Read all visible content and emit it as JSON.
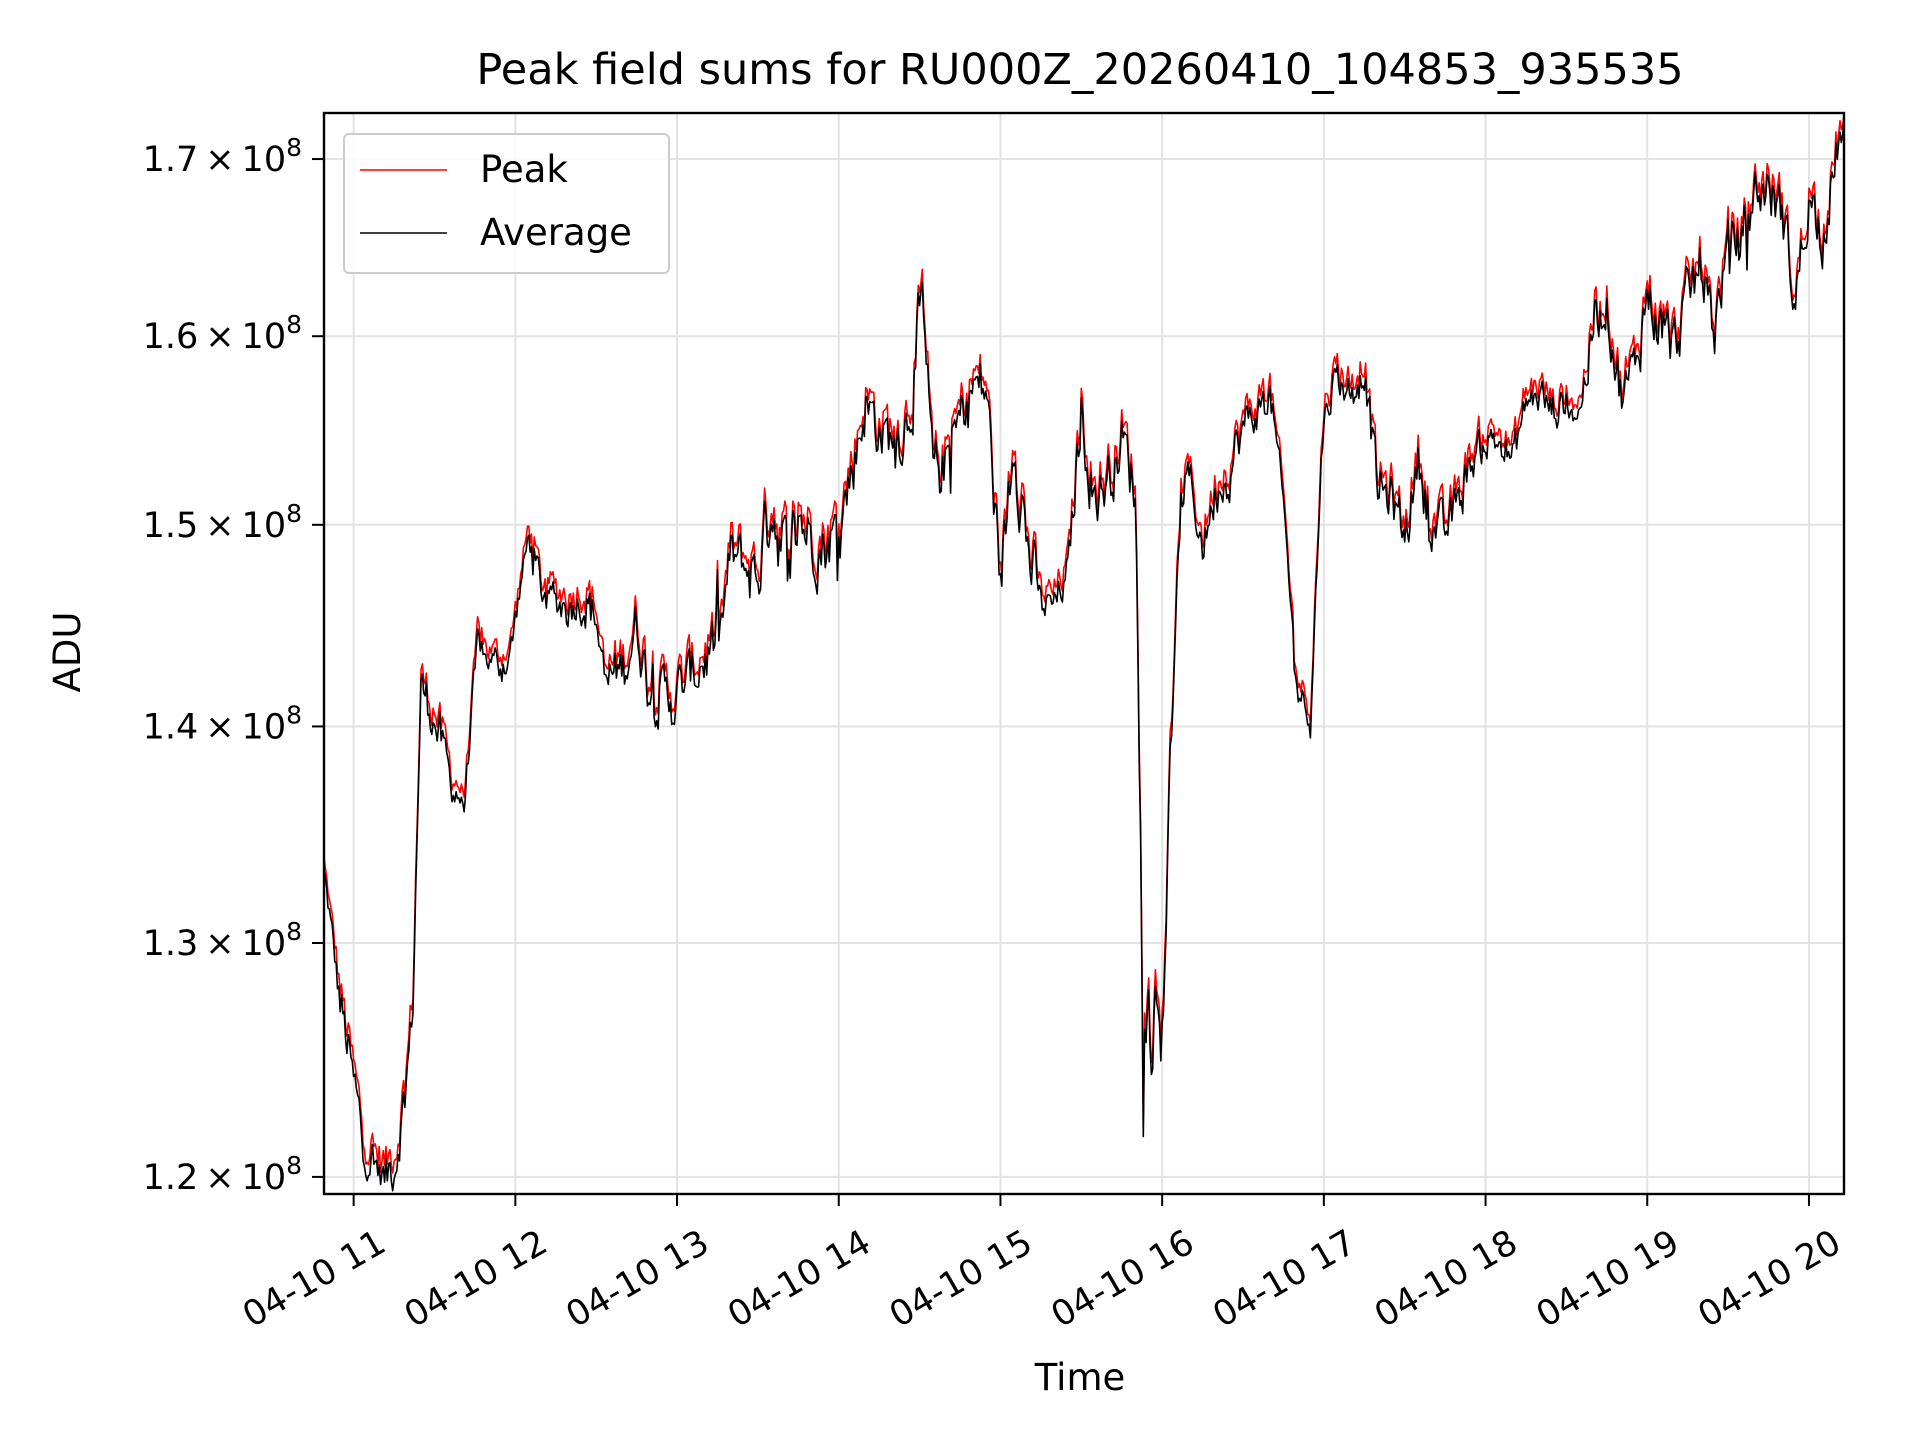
{
  "chart_data": {
    "type": "line",
    "title": "Peak field sums for RU000Z_20260410_104853_935535",
    "xlabel": "Time",
    "ylabel": "ADU",
    "y_scale": "log",
    "ylim": [
      119300000,
      172700000
    ],
    "xlim": [
      "2026-04-10 10:49",
      "2026-04-10 20:13"
    ],
    "grid": true,
    "legend_position": "upper left",
    "x_ticks": [
      {
        "t": "2026-04-10 11:00",
        "label": "04-10 11"
      },
      {
        "t": "2026-04-10 12:00",
        "label": "04-10 12"
      },
      {
        "t": "2026-04-10 13:00",
        "label": "04-10 13"
      },
      {
        "t": "2026-04-10 14:00",
        "label": "04-10 14"
      },
      {
        "t": "2026-04-10 15:00",
        "label": "04-10 15"
      },
      {
        "t": "2026-04-10 16:00",
        "label": "04-10 16"
      },
      {
        "t": "2026-04-10 17:00",
        "label": "04-10 17"
      },
      {
        "t": "2026-04-10 18:00",
        "label": "04-10 18"
      },
      {
        "t": "2026-04-10 19:00",
        "label": "04-10 19"
      },
      {
        "t": "2026-04-10 20:00",
        "label": "04-10 20"
      }
    ],
    "y_ticks": [
      {
        "v": 120000000,
        "mant": "1.2",
        "exp": "8"
      },
      {
        "v": 130000000,
        "mant": "1.3",
        "exp": "8"
      },
      {
        "v": 140000000,
        "mant": "1.4",
        "exp": "8"
      },
      {
        "v": 150000000,
        "mant": "1.5",
        "exp": "8"
      },
      {
        "v": 160000000,
        "mant": "1.6",
        "exp": "8"
      },
      {
        "v": 170000000,
        "mant": "1.7",
        "exp": "8"
      }
    ],
    "series": [
      {
        "name": "Peak",
        "color": "#ff0000",
        "t": [
          "2026-04-10 10:49",
          "2026-04-10 10:55",
          "2026-04-10 11:00",
          "2026-04-10 11:04",
          "2026-04-10 11:08",
          "2026-04-10 11:12",
          "2026-04-10 11:16",
          "2026-04-10 11:20",
          "2026-04-10 11:22",
          "2026-04-10 11:25",
          "2026-04-10 11:30",
          "2026-04-10 11:36",
          "2026-04-10 11:41",
          "2026-04-10 11:46",
          "2026-04-10 11:50",
          "2026-04-10 11:54",
          "2026-04-10 11:58",
          "2026-04-10 12:05",
          "2026-04-10 12:10",
          "2026-04-10 12:20",
          "2026-04-10 12:25",
          "2026-04-10 12:30",
          "2026-04-10 12:33",
          "2026-04-10 12:40",
          "2026-04-10 12:45",
          "2026-04-10 12:50",
          "2026-04-10 12:55",
          "2026-04-10 13:00",
          "2026-04-10 13:08",
          "2026-04-10 13:16",
          "2026-04-10 13:20",
          "2026-04-10 13:30",
          "2026-04-10 13:35",
          "2026-04-10 13:41",
          "2026-04-10 13:45",
          "2026-04-10 13:50",
          "2026-04-10 13:55",
          "2026-04-10 14:00",
          "2026-04-10 14:05",
          "2026-04-10 14:10",
          "2026-04-10 14:15",
          "2026-04-10 14:20",
          "2026-04-10 14:25",
          "2026-04-10 14:31",
          "2026-04-10 14:35",
          "2026-04-10 14:40",
          "2026-04-10 14:45",
          "2026-04-10 14:50",
          "2026-04-10 14:55",
          "2026-04-10 15:00",
          "2026-04-10 15:05",
          "2026-04-10 15:10",
          "2026-04-10 15:15",
          "2026-04-10 15:20",
          "2026-04-10 15:25",
          "2026-04-10 15:30",
          "2026-04-10 15:35",
          "2026-04-10 15:40",
          "2026-04-10 15:45",
          "2026-04-10 15:50",
          "2026-04-10 15:53",
          "2026-04-10 15:57",
          "2026-04-10 16:00",
          "2026-04-10 16:03",
          "2026-04-10 16:07",
          "2026-04-10 16:10",
          "2026-04-10 16:15",
          "2026-04-10 16:20",
          "2026-04-10 16:25",
          "2026-04-10 16:30",
          "2026-04-10 16:40",
          "2026-04-10 16:45",
          "2026-04-10 16:50",
          "2026-04-10 16:55",
          "2026-04-10 17:00",
          "2026-04-10 17:05",
          "2026-04-10 17:10",
          "2026-04-10 17:15",
          "2026-04-10 17:20",
          "2026-04-10 17:25",
          "2026-04-10 17:30",
          "2026-04-10 17:35",
          "2026-04-10 17:40",
          "2026-04-10 17:45",
          "2026-04-10 17:50",
          "2026-04-10 17:55",
          "2026-04-10 18:00",
          "2026-04-10 18:05",
          "2026-04-10 18:10",
          "2026-04-10 18:15",
          "2026-04-10 18:20",
          "2026-04-10 18:25",
          "2026-04-10 18:30",
          "2026-04-10 18:35",
          "2026-04-10 18:40",
          "2026-04-10 18:45",
          "2026-04-10 18:50",
          "2026-04-10 18:55",
          "2026-04-10 19:00",
          "2026-04-10 19:05",
          "2026-04-10 19:10",
          "2026-04-10 19:15",
          "2026-04-10 19:20",
          "2026-04-10 19:25",
          "2026-04-10 19:30",
          "2026-04-10 19:35",
          "2026-04-10 19:40",
          "2026-04-10 19:45",
          "2026-04-10 19:50",
          "2026-04-10 19:55",
          "2026-04-10 20:00",
          "2026-04-10 20:05",
          "2026-04-10 20:10",
          "2026-04-10 20:13"
        ],
        "y": [
          133800000,
          128000000,
          124500000,
          121800000,
          121000000,
          120500000,
          121500000,
          125000000,
          128000000,
          142500000,
          141000000,
          138000000,
          136800000,
          144500000,
          143800000,
          143500000,
          144000000,
          150000000,
          147000000,
          146500000,
          147000000,
          146000000,
          142500000,
          143500000,
          145500000,
          142500000,
          142000000,
          142000000,
          143500000,
          145000000,
          149000000,
          148000000,
          152000000,
          148500000,
          151000000,
          150000000,
          149500000,
          150500000,
          153500000,
          157000000,
          155500000,
          155000000,
          156000000,
          161500000,
          153000000,
          154000000,
          156000000,
          158000000,
          157500000,
          147000000,
          156000000,
          149500000,
          146500000,
          146500000,
          148000000,
          156500000,
          152000000,
          153000000,
          155000000,
          152500000,
          127500000,
          127000000,
          127000000,
          138500000,
          152000000,
          153000000,
          149500000,
          152500000,
          153500000,
          155500000,
          157500000,
          151500000,
          142500000,
          141000000,
          156500000,
          158500000,
          157500000,
          159000000,
          152500000,
          152000000,
          150000000,
          154000000,
          150500000,
          150000000,
          152000000,
          154000000,
          155000000,
          155000000,
          154000000,
          157000000,
          157500000,
          156500000,
          157000000,
          156500000,
          161000000,
          162500000,
          157500000,
          158500000,
          163000000,
          161000000,
          160000000,
          162500000,
          164500000,
          161000000,
          165500000,
          166000000,
          168500000,
          169000000,
          167500000,
          162500000,
          168500000,
          166500000,
          170500000,
          172600000
        ],
        "amp": [
          200000,
          900000,
          900000,
          900000,
          900000,
          900000,
          900000,
          900000,
          900000,
          900000,
          1100000,
          900000,
          400000,
          800000,
          700000,
          700000,
          700000,
          700000,
          900000,
          900000,
          1100000,
          1100000,
          1100000,
          1300000,
          1300000,
          1300000,
          1300000,
          1300000,
          1300000,
          1300000,
          1300000,
          1500000,
          2000000,
          2000000,
          2000000,
          1500000,
          1500000,
          1500000,
          1500000,
          1500000,
          1500000,
          1500000,
          1800000,
          2200000,
          1500000,
          1500000,
          1500000,
          1500000,
          1500000,
          1500000,
          2000000,
          2000000,
          900000,
          900000,
          900000,
          1500000,
          1500000,
          1500000,
          1500000,
          1500000,
          2000000,
          2000000,
          2000000,
          1500000,
          1000000,
          1000000,
          1000000,
          1200000,
          1200000,
          1200000,
          900000,
          900000,
          700000,
          700000,
          1000000,
          1000000,
          1000000,
          1000000,
          1200000,
          1200000,
          1200000,
          1200000,
          1200000,
          1200000,
          1200000,
          1000000,
          900000,
          900000,
          900000,
          900000,
          900000,
          900000,
          900000,
          900000,
          1300000,
          1300000,
          1500000,
          1500000,
          1500000,
          1500000,
          1500000,
          1500000,
          1500000,
          1500000,
          1500000,
          1500000,
          1500000,
          1500000,
          1500000,
          1500000,
          1500000,
          1500000,
          1500000,
          500000
        ]
      },
      {
        "name": "Average",
        "color": "#000000",
        "offset": -600000
      }
    ]
  }
}
